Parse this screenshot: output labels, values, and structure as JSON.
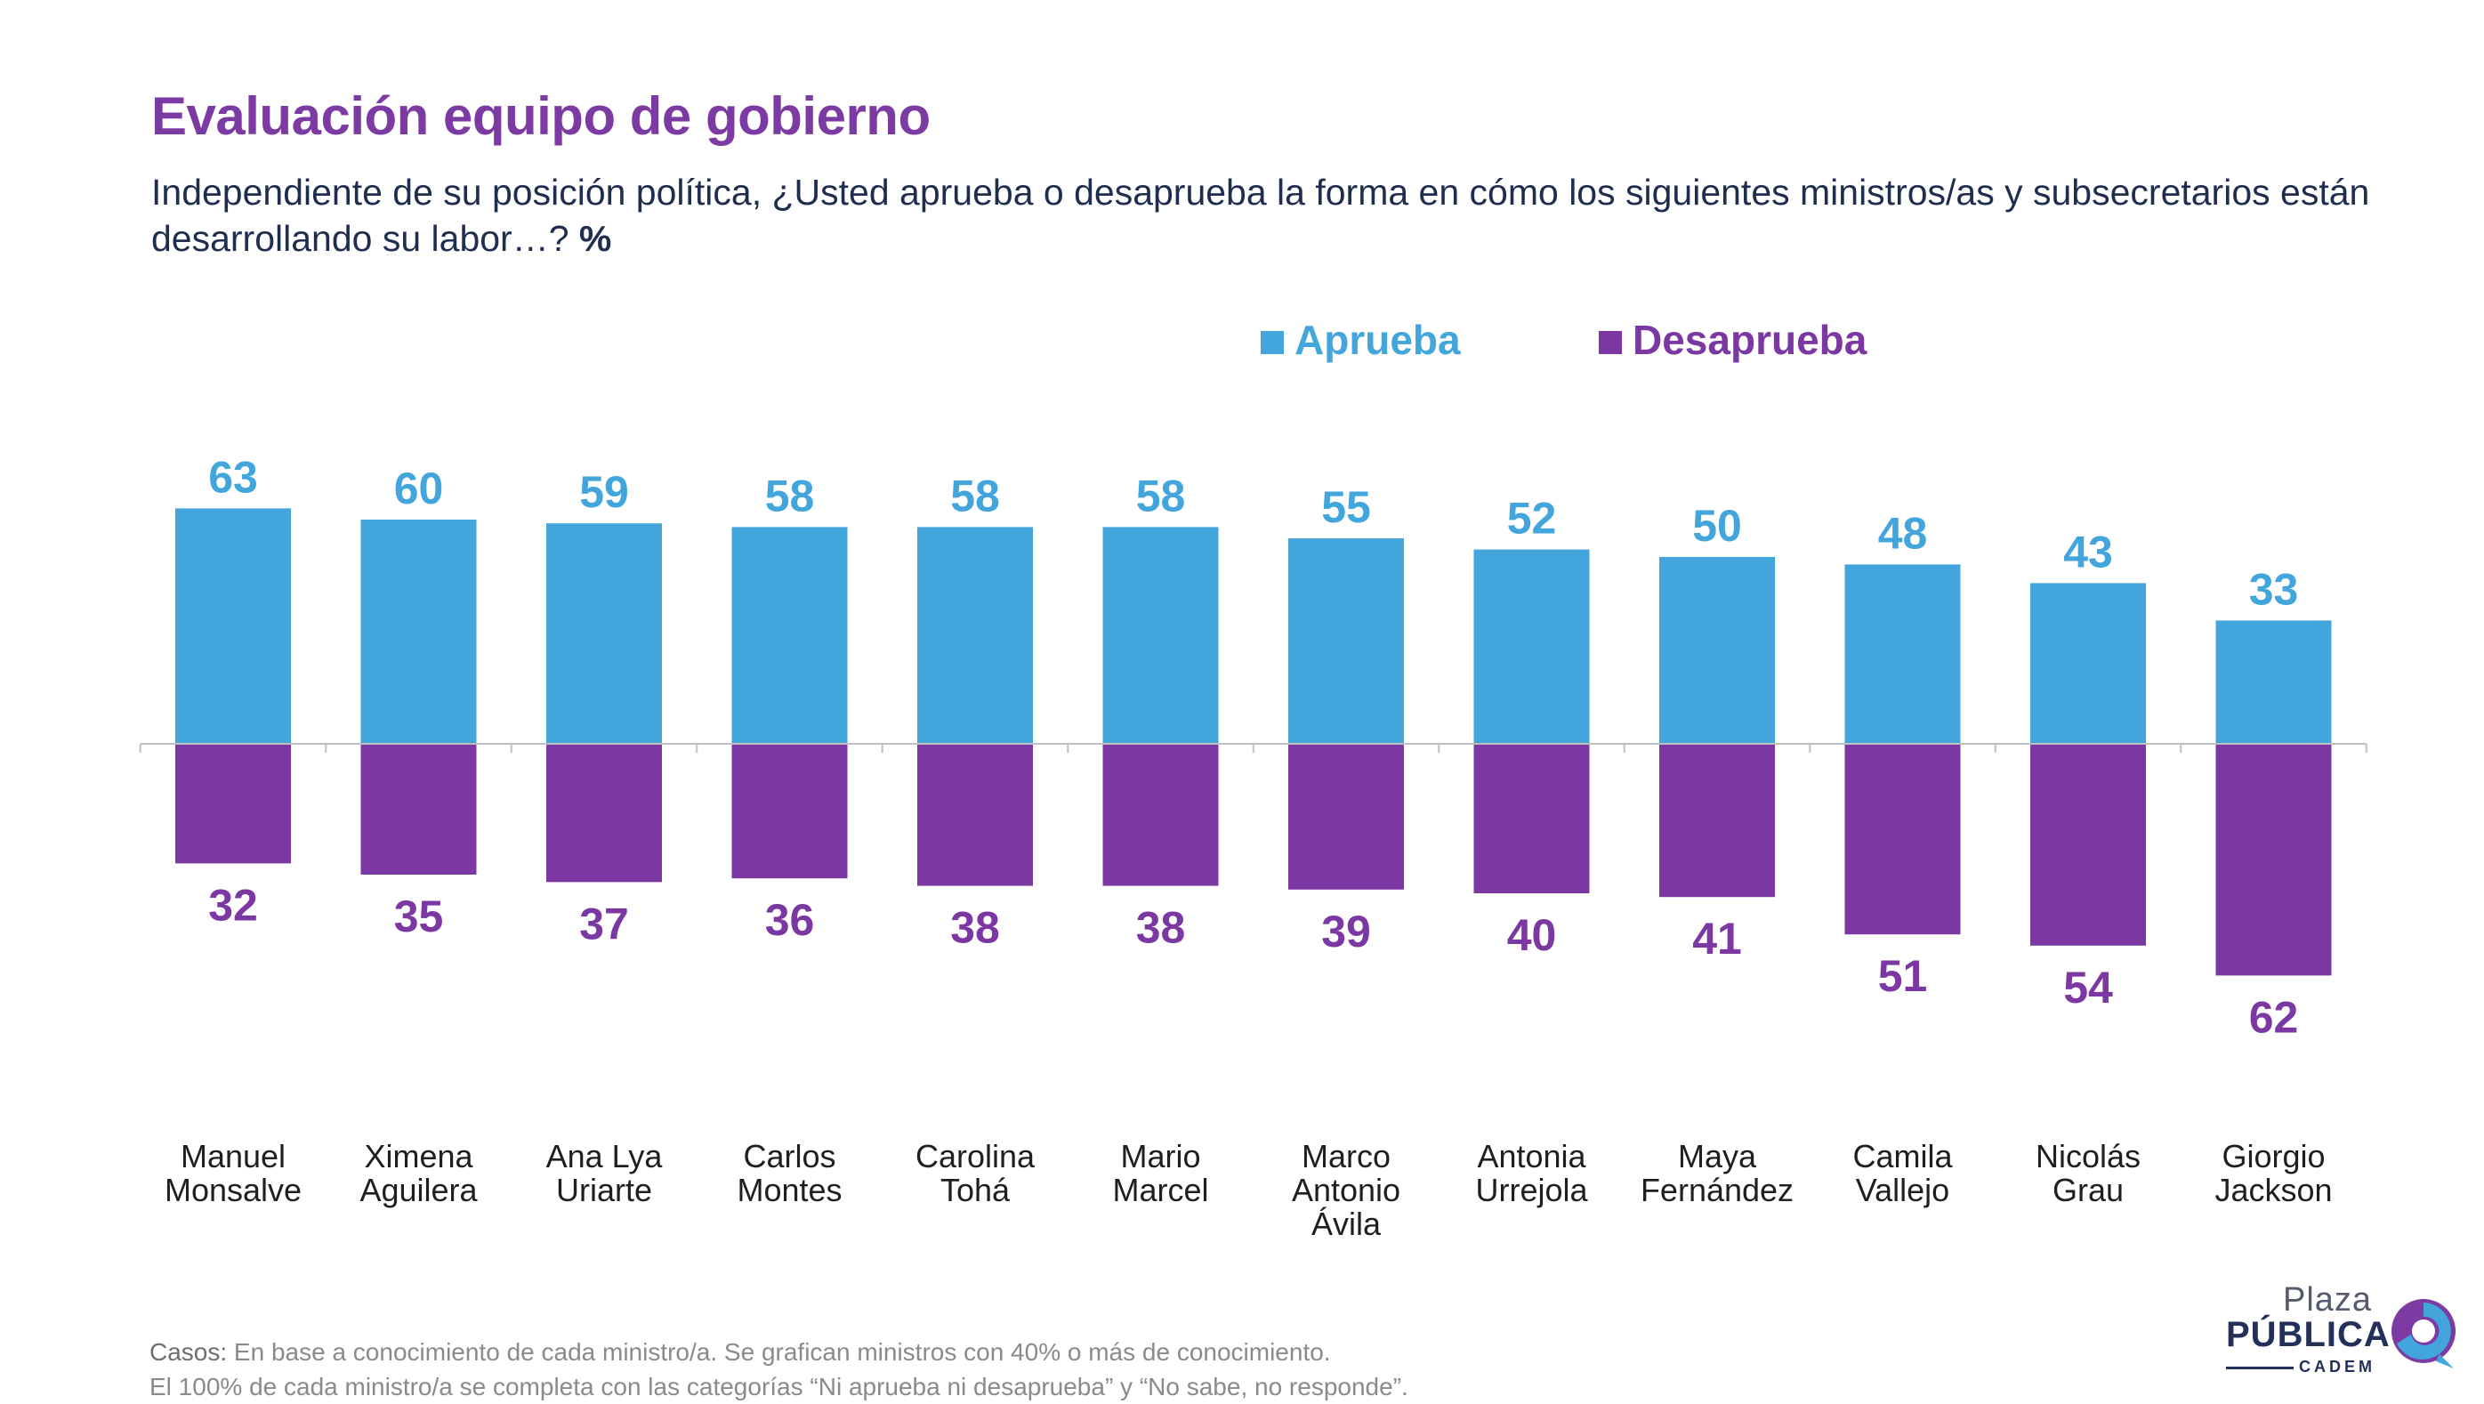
{
  "title": "Evaluación equipo de gobierno",
  "subtitle": "Independiente de su posición política, ¿Usted aprueba o desaprueba la forma en cómo los siguientes ministros/as y subsecretarios están desarrollando su labor…?",
  "subtitle_unit": "%",
  "colors": {
    "aprueba": "#42A5DC",
    "desaprueba": "#7B38A2",
    "title": "#7B3BA3",
    "text": "#1F2D4E"
  },
  "chart_data": {
    "type": "bar",
    "categories": [
      [
        "Manuel",
        "Monsalve"
      ],
      [
        "Ximena",
        "Aguilera"
      ],
      [
        "Ana Lya",
        "Uriarte"
      ],
      [
        "Carlos",
        "Montes"
      ],
      [
        "Carolina",
        "Tohá"
      ],
      [
        "Mario",
        "Marcel"
      ],
      [
        "Marco",
        "Antonio",
        "Ávila"
      ],
      [
        "Antonia",
        "Urrejola"
      ],
      [
        "Maya",
        "Fernández"
      ],
      [
        "Camila",
        "Vallejo"
      ],
      [
        "Nicolás",
        "Grau"
      ],
      [
        "Giorgio",
        "Jackson"
      ]
    ],
    "series": [
      {
        "name": "Aprueba",
        "direction": "up",
        "values": [
          63,
          60,
          59,
          58,
          58,
          58,
          55,
          52,
          50,
          48,
          43,
          33
        ]
      },
      {
        "name": "Desaprueba",
        "direction": "down",
        "values": [
          32,
          35,
          37,
          36,
          38,
          38,
          39,
          40,
          41,
          51,
          54,
          62
        ]
      }
    ],
    "legend_position": "top-right",
    "data_labels": true,
    "grid": false
  },
  "footnote": {
    "casos_label": "Casos:",
    "line1": " En base a conocimiento de cada ministro/a. Se grafican ministros con 40% o más de conocimiento.",
    "line2": "El 100% de cada ministro/a se completa con las categorías “Ni aprueba ni desaprueba” y “No sabe, no responde”."
  },
  "logo": {
    "line1": "Plaza",
    "line2": "PÚBLICA",
    "line3": "CADEM"
  }
}
